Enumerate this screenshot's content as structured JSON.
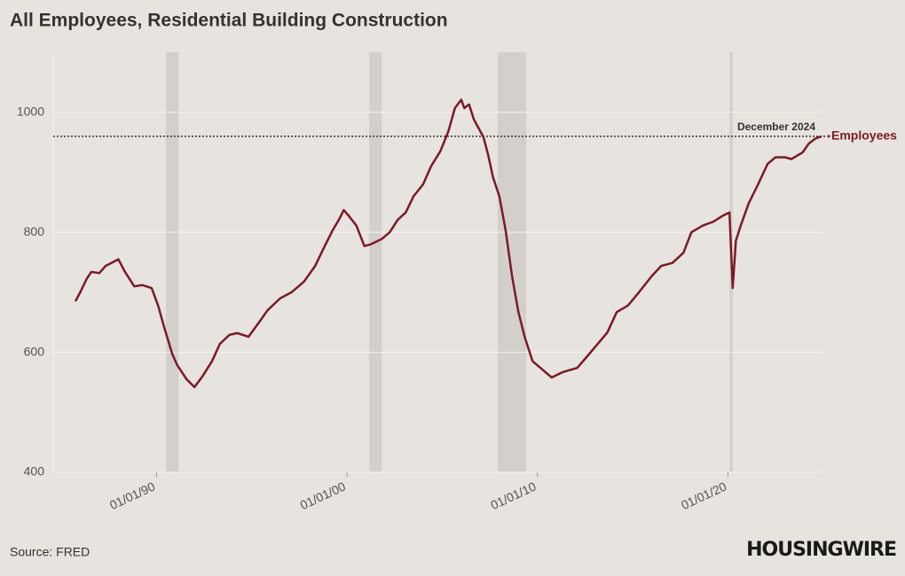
{
  "chart_data": {
    "type": "line",
    "title": "All Employees, Residential Building Construction",
    "source": "Source: FRED",
    "brand": "HOUSINGWIRE",
    "x": [
      "1985-10",
      "1986-01",
      "1986-05",
      "1986-08",
      "1987-01",
      "1987-05",
      "1988-01",
      "1988-05",
      "1988-11",
      "1989-04",
      "1989-10",
      "1990-02",
      "1990-06",
      "1990-11",
      "1991-02",
      "1991-08",
      "1992-01",
      "1992-06",
      "1992-12",
      "1993-05",
      "1993-11",
      "1994-04",
      "1994-11",
      "1995-06",
      "1995-11",
      "1996-07",
      "1997-02",
      "1997-10",
      "1998-05",
      "1998-11",
      "1999-04",
      "1999-08",
      "1999-11",
      "2000-02",
      "2000-07",
      "2000-12",
      "2001-04",
      "2001-11",
      "2002-04",
      "2002-09",
      "2003-02",
      "2003-07",
      "2004-01",
      "2004-06",
      "2004-12",
      "2005-05",
      "2005-09",
      "2006-01",
      "2006-03",
      "2006-06",
      "2006-09",
      "2007-03",
      "2007-06",
      "2007-09",
      "2008-01",
      "2008-05",
      "2008-09",
      "2009-01",
      "2009-05",
      "2009-10",
      "2010-03",
      "2010-10",
      "2011-05",
      "2012-02",
      "2012-07",
      "2013-02",
      "2013-09",
      "2014-03",
      "2014-10",
      "2015-05",
      "2016-01",
      "2016-07",
      "2017-02",
      "2017-09",
      "2018-02",
      "2018-09",
      "2019-04",
      "2019-10",
      "2020-02",
      "2020-04",
      "2020-06",
      "2020-09",
      "2021-02",
      "2021-08",
      "2022-02",
      "2022-07",
      "2023-01",
      "2023-05",
      "2023-12",
      "2024-04",
      "2024-08",
      "2024-12"
    ],
    "series": [
      {
        "name": "Employees",
        "color": "#7a1a26",
        "values": [
          685,
          700,
          722,
          734,
          732,
          744,
          755,
          735,
          710,
          712,
          707,
          678,
          641,
          597,
          579,
          555,
          542,
          560,
          585,
          614,
          629,
          632,
          626,
          651,
          670,
          690,
          700,
          718,
          744,
          777,
          803,
          821,
          837,
          828,
          811,
          777,
          780,
          789,
          800,
          821,
          833,
          860,
          880,
          910,
          936,
          969,
          1007,
          1021,
          1007,
          1013,
          988,
          959,
          929,
          892,
          860,
          803,
          727,
          667,
          626,
          585,
          574,
          558,
          567,
          574,
          589,
          611,
          633,
          667,
          678,
          700,
          727,
          744,
          749,
          766,
          800,
          811,
          818,
          828,
          833,
          707,
          786,
          811,
          848,
          880,
          914,
          925,
          925,
          922,
          933,
          948,
          956,
          960
        ]
      }
    ],
    "recessions": [
      [
        "1990-07",
        "1991-03"
      ],
      [
        "2001-03",
        "2001-11"
      ],
      [
        "2007-12",
        "2009-06"
      ],
      [
        "2020-02",
        "2020-04"
      ]
    ],
    "reference_line": {
      "value": 960,
      "label": "December 2024"
    },
    "xlim": [
      "1984-08",
      "2024-12"
    ],
    "xticks": [
      {
        "value": "1990-01",
        "label": "01/01/90"
      },
      {
        "value": "2000-01",
        "label": "01/01/00"
      },
      {
        "value": "2010-01",
        "label": "01/01/10"
      },
      {
        "value": "2020-01",
        "label": "01/01/20"
      }
    ],
    "ylim": [
      400,
      1100
    ],
    "yticks": [
      400,
      600,
      800,
      1000
    ],
    "grid": true
  }
}
